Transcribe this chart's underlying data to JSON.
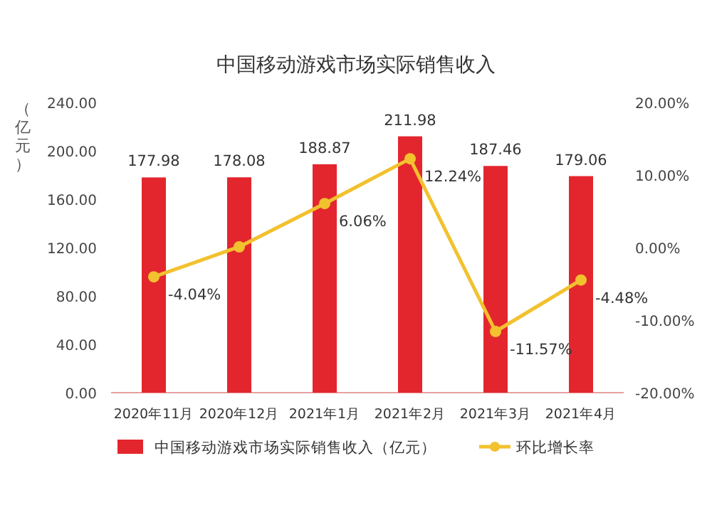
{
  "chart_data": {
    "type": "bar",
    "title": "中国移动游戏市场实际销售收入",
    "ylabel": "（亿元）",
    "categories": [
      "2020年11月",
      "2020年12月",
      "2021年1月",
      "2021年2月",
      "2021年3月",
      "2021年4月"
    ],
    "series": [
      {
        "name": "中国移动游戏市场实际销售收入（亿元）",
        "color": "#e3262d",
        "values": [
          177.98,
          178.08,
          188.87,
          211.98,
          187.46,
          179.06
        ],
        "value_labels": [
          "177.98",
          "178.08",
          "188.87",
          "211.98",
          "187.46",
          "179.06"
        ]
      },
      {
        "name": "环比增长率",
        "type": "line",
        "axis": "y2",
        "color": "#f2c12e",
        "values": [
          -4.04,
          0.1,
          6.06,
          12.24,
          -11.57,
          -4.48
        ],
        "value_labels": [
          "-4.04%",
          null,
          "6.06%",
          "12.24%",
          "-11.57%",
          "-4.48%"
        ]
      }
    ],
    "ylim": [
      0,
      240
    ],
    "yticks": [
      {
        "value": 0,
        "label": "0.00"
      },
      {
        "value": 40,
        "label": "40.00"
      },
      {
        "value": 80,
        "label": "80.00"
      },
      {
        "value": 120,
        "label": "120.00"
      },
      {
        "value": 160,
        "label": "160.00"
      },
      {
        "value": 200,
        "label": "200.00"
      },
      {
        "value": 240,
        "label": "240.00"
      }
    ],
    "y2lim": [
      -20,
      20
    ],
    "y2ticks": [
      {
        "value": -20,
        "label": "-20.00%"
      },
      {
        "value": -10,
        "label": "-10.00%"
      },
      {
        "value": 0,
        "label": "0.00%"
      },
      {
        "value": 10,
        "label": "10.00%"
      },
      {
        "value": 20,
        "label": "20.00%"
      }
    ],
    "marker": "circle",
    "legend": "bottom",
    "grid": false
  }
}
